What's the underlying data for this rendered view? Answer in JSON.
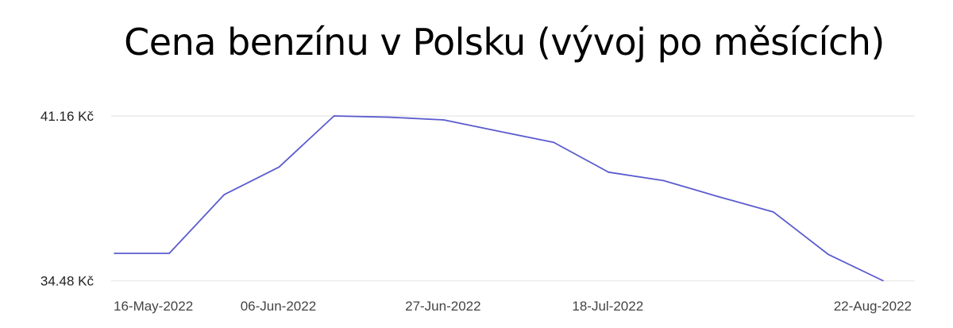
{
  "chart_data": {
    "type": "line",
    "title": "Cena benzínu v Polsku (vývoj po měsících)",
    "xlabel": "",
    "ylabel": "",
    "x": [
      "16-May-2022",
      "23-May-2022",
      "30-May-2022",
      "06-Jun-2022",
      "13-Jun-2022",
      "20-Jun-2022",
      "27-Jun-2022",
      "04-Jul-2022",
      "11-Jul-2022",
      "18-Jul-2022",
      "25-Jul-2022",
      "01-Aug-2022",
      "08-Aug-2022",
      "15-Aug-2022",
      "22-Aug-2022"
    ],
    "x_tick_labels": [
      "16-May-2022",
      "06-Jun-2022",
      "27-Jun-2022",
      "18-Jul-2022",
      "22-Aug-2022"
    ],
    "y_tick_labels": [
      "41.16 Kč",
      "34.48 Kč"
    ],
    "y_ticks": [
      41.16,
      34.48
    ],
    "ylim": [
      34.48,
      41.16
    ],
    "series": [
      {
        "values": [
          35.59,
          35.59,
          37.97,
          39.09,
          41.16,
          41.11,
          41.0,
          40.54,
          40.09,
          38.88,
          38.54,
          37.89,
          37.27,
          35.55,
          34.48
        ],
        "color": "#5b5bd0"
      }
    ],
    "grid": true,
    "legend": "none"
  }
}
